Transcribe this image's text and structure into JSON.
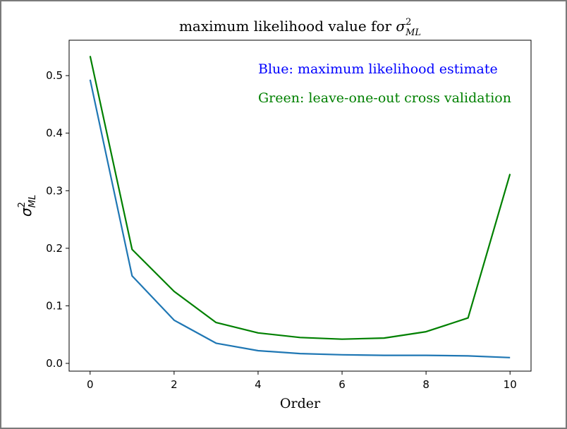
{
  "chart_data": {
    "type": "line",
    "title_prefix": "maximum likelihood value for ",
    "title_symbol": "σ",
    "title_sup": "2",
    "title_sub": "ML",
    "xlabel": "Order",
    "ylabel_symbol": "σ",
    "ylabel_sup": "2",
    "ylabel_sub": "ML",
    "xlim": [
      -0.5,
      10.5
    ],
    "ylim": [
      -0.0135,
      0.5615
    ],
    "xticks": [
      0,
      2,
      4,
      6,
      8,
      10
    ],
    "xtick_labels": [
      "0",
      "2",
      "4",
      "6",
      "8",
      "10"
    ],
    "yticks": [
      0.0,
      0.1,
      0.2,
      0.3,
      0.4,
      0.5
    ],
    "ytick_labels": [
      "0.0",
      "0.1",
      "0.2",
      "0.3",
      "0.4",
      "0.5"
    ],
    "grid": false,
    "x": [
      0,
      1,
      2,
      3,
      4,
      5,
      6,
      7,
      8,
      9,
      10
    ],
    "series": [
      {
        "color": "#1f77b4",
        "values": [
          0.493,
          0.152,
          0.075,
          0.035,
          0.022,
          0.017,
          0.015,
          0.014,
          0.014,
          0.013,
          0.01
        ]
      },
      {
        "color": "#008000",
        "values": [
          0.534,
          0.198,
          0.125,
          0.071,
          0.053,
          0.045,
          0.042,
          0.044,
          0.055,
          0.079,
          0.329
        ]
      }
    ],
    "annotations": [
      {
        "text": "Blue: maximum likelihood estimate",
        "color": "#0000ff"
      },
      {
        "text": "Green: leave-one-out cross validation",
        "color": "#008000"
      }
    ]
  }
}
